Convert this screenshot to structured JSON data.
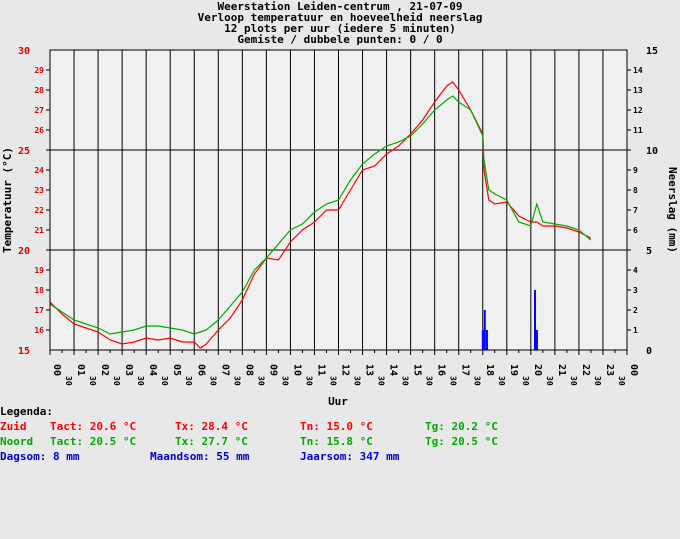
{
  "chart_data": {
    "type": "line",
    "title_lines": [
      "Weerstation Leiden-centrum , 21-07-09",
      "Verloop temperatuur en hoeveelheid neerslag",
      "12 plots per uur (iedere 5 minuten)",
      "Gemiste / dubbele punten: 0 / 0"
    ],
    "xlabel": "Uur",
    "ylabel_left": "Temperatuur (°C)",
    "ylabel_right": "Neerslag (mm)",
    "ylim_left": [
      15,
      30
    ],
    "ylim_right": [
      0,
      15
    ],
    "xlim": [
      0,
      24
    ],
    "x_tick_labels": [
      "00",
      "30",
      "01",
      "30",
      "02",
      "30",
      "03",
      "30",
      "04",
      "30",
      "05",
      "30",
      "06",
      "30",
      "07",
      "30",
      "08",
      "30",
      "09",
      "30",
      "10",
      "30",
      "11",
      "30",
      "12",
      "30",
      "13",
      "30",
      "14",
      "30",
      "15",
      "30",
      "16",
      "30",
      "17",
      "30",
      "18",
      "30",
      "19",
      "30",
      "20",
      "30",
      "21",
      "30",
      "22",
      "30",
      "23",
      "30",
      "00"
    ],
    "y_left_ticks": [
      "15",
      "16",
      "17",
      "18",
      "19",
      "20",
      "21",
      "22",
      "23",
      "24",
      "25",
      "26",
      "27",
      "28",
      "29",
      "30"
    ],
    "y_right_ticks": [
      "0",
      "1",
      "2",
      "3",
      "4",
      "5",
      "6",
      "7",
      "8",
      "9",
      "10",
      "11",
      "12",
      "13",
      "14",
      "15"
    ],
    "colors": {
      "zuid": "#ff0000",
      "noord": "#00aa00",
      "rain": "#0000ff",
      "left_axis": "#dd0000",
      "background": "#e8e8e8",
      "plot_bg": "#f0f0f0"
    },
    "series": [
      {
        "name": "Zuid",
        "color": "#ff0000",
        "x": [
          0,
          0.5,
          1,
          1.5,
          2,
          2.5,
          3,
          3.5,
          4,
          4.5,
          5,
          5.5,
          6,
          6.25,
          6.5,
          7,
          7.5,
          8,
          8.5,
          9,
          9.5,
          10,
          10.5,
          11,
          11.5,
          12,
          12.5,
          13,
          13.5,
          14,
          14.5,
          15,
          15.5,
          16,
          16.5,
          16.75,
          17,
          17.5,
          18,
          18.05,
          18.25,
          18.5,
          19,
          19.5,
          20,
          20.25,
          20.5,
          21,
          21.5,
          22,
          22.5
        ],
        "y": [
          17.4,
          16.8,
          16.3,
          16.1,
          15.9,
          15.5,
          15.3,
          15.4,
          15.6,
          15.5,
          15.6,
          15.4,
          15.4,
          15.1,
          15.3,
          16.0,
          16.6,
          17.5,
          18.8,
          19.6,
          19.5,
          20.4,
          21.0,
          21.4,
          22.0,
          22.0,
          23.0,
          24.0,
          24.2,
          24.8,
          25.2,
          25.8,
          26.5,
          27.4,
          28.2,
          28.4,
          28.0,
          27.0,
          25.8,
          24.0,
          22.5,
          22.3,
          22.4,
          21.7,
          21.4,
          21.4,
          21.2,
          21.2,
          21.1,
          20.9,
          20.6
        ]
      },
      {
        "name": "Noord",
        "color": "#00aa00",
        "x": [
          0,
          0.5,
          1,
          1.5,
          2,
          2.5,
          3,
          3.5,
          4,
          4.5,
          5,
          5.5,
          6,
          6.25,
          6.5,
          7,
          7.5,
          8,
          8.5,
          9,
          9.5,
          10,
          10.5,
          11,
          11.5,
          12,
          12.5,
          13,
          13.5,
          14,
          14.5,
          15,
          15.5,
          16,
          16.5,
          16.75,
          17,
          17.5,
          18,
          18.05,
          18.25,
          18.5,
          19,
          19.5,
          20,
          20.25,
          20.5,
          21,
          21.5,
          22,
          22.5
        ],
        "y": [
          17.3,
          16.9,
          16.5,
          16.3,
          16.1,
          15.8,
          15.9,
          16.0,
          16.2,
          16.2,
          16.1,
          16.0,
          15.8,
          15.9,
          16.0,
          16.5,
          17.2,
          17.9,
          19.0,
          19.6,
          20.3,
          21.0,
          21.3,
          21.9,
          22.3,
          22.5,
          23.5,
          24.3,
          24.8,
          25.2,
          25.4,
          25.7,
          26.3,
          27.0,
          27.5,
          27.7,
          27.4,
          27.0,
          25.7,
          24.5,
          23.0,
          22.8,
          22.5,
          21.4,
          21.2,
          22.3,
          21.4,
          21.3,
          21.2,
          21.0,
          20.5
        ]
      },
      {
        "name": "Neerslag",
        "color": "#0000ff",
        "bars": [
          {
            "x": 18.0,
            "value": 1.0
          },
          {
            "x": 18.08,
            "value": 2.0
          },
          {
            "x": 18.17,
            "value": 1.0
          },
          {
            "x": 20.17,
            "value": 3.0
          },
          {
            "x": 20.25,
            "value": 1.0
          }
        ]
      }
    ],
    "legend": {
      "heading": "Legenda:",
      "zuid": {
        "name": "Zuid",
        "tact": "Tact: 20.6 °C",
        "tx": "Tx: 28.4 °C",
        "tn": "Tn: 15.0 °C",
        "tg": "Tg: 20.2 °C"
      },
      "noord": {
        "name": "Noord",
        "tact": "Tact: 20.5 °C",
        "tx": "Tx: 27.7 °C",
        "tn": "Tn: 15.8 °C",
        "tg": "Tg: 20.5 °C"
      },
      "rain": {
        "dag": "Dagsom: 8 mm",
        "maand": "Maandsom: 55 mm",
        "jaar": "Jaarsom: 347 mm"
      }
    }
  }
}
